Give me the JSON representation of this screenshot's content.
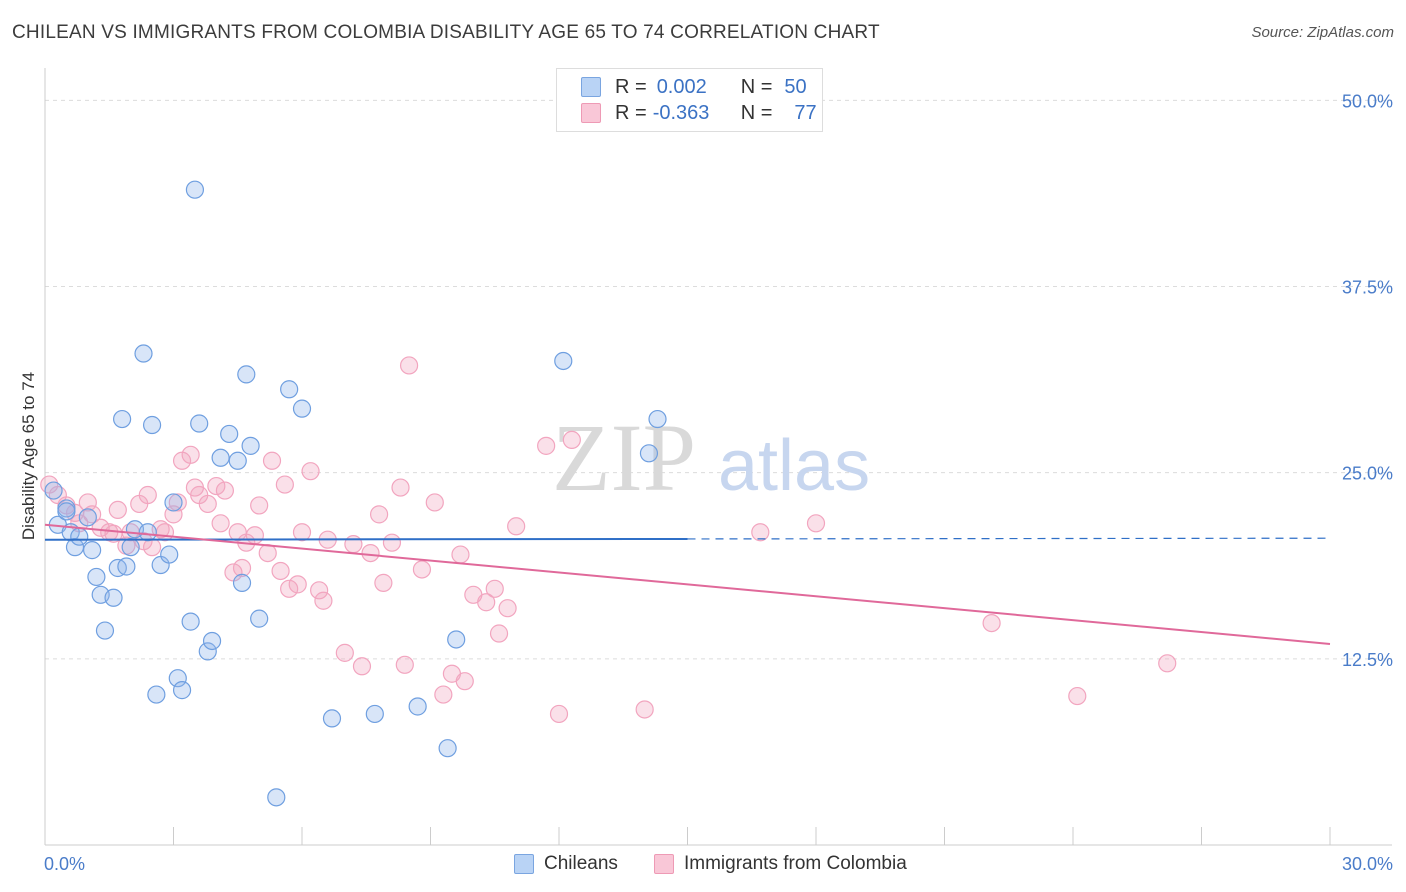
{
  "title": "CHILEAN VS IMMIGRANTS FROM COLOMBIA DISABILITY AGE 65 TO 74 CORRELATION CHART",
  "source": "Source: ZipAtlas.com",
  "watermark": {
    "zip": "ZIP",
    "atlas": "atlas"
  },
  "legend": {
    "r_label": "R =",
    "n_label": "N =",
    "series": [
      {
        "r": "0.002",
        "n": "50",
        "fill": "#b9d3f5",
        "stroke": "#7aa5e0"
      },
      {
        "r": "-0.363",
        "n": "77",
        "fill": "#f9c7d7",
        "stroke": "#ee9ab5"
      }
    ]
  },
  "colors": {
    "blue_point": "#8fb5ea",
    "blue_line": "#2f6fc7",
    "pink_point": "#f2a5bf",
    "pink_line": "#e0699a",
    "tick_text": "#4a7cc9"
  },
  "chart_data": {
    "type": "scatter",
    "title": "CHILEAN VS IMMIGRANTS FROM COLOMBIA DISABILITY AGE 65 TO 74 CORRELATION CHART",
    "xlabel": "",
    "ylabel": "Disability Age 65 to 74",
    "xlim": [
      0,
      30
    ],
    "ylim": [
      0,
      51.5
    ],
    "x_tick_labels": [
      "0.0%",
      "30.0%"
    ],
    "y_ticks": [
      12.5,
      25.0,
      37.5,
      50.0
    ],
    "y_tick_labels": [
      "12.5%",
      "25.0%",
      "37.5%",
      "50.0%"
    ],
    "grid": true,
    "legend_position": "top-center",
    "series": [
      {
        "name": "Chileans",
        "points": [
          [
            0.2,
            23.8
          ],
          [
            0.3,
            21.5
          ],
          [
            0.5,
            22.6
          ],
          [
            0.6,
            21.0
          ],
          [
            0.7,
            20.0
          ],
          [
            0.8,
            20.7
          ],
          [
            1.0,
            22.0
          ],
          [
            1.1,
            19.8
          ],
          [
            1.2,
            18.0
          ],
          [
            1.3,
            16.8
          ],
          [
            1.4,
            14.4
          ],
          [
            1.6,
            16.6
          ],
          [
            1.7,
            18.6
          ],
          [
            1.8,
            28.6
          ],
          [
            1.9,
            18.7
          ],
          [
            2.0,
            20.0
          ],
          [
            2.1,
            21.2
          ],
          [
            2.3,
            33.0
          ],
          [
            2.4,
            21.0
          ],
          [
            2.5,
            28.2
          ],
          [
            2.6,
            10.1
          ],
          [
            2.7,
            18.8
          ],
          [
            2.9,
            19.5
          ],
          [
            3.0,
            23.0
          ],
          [
            3.1,
            11.2
          ],
          [
            3.2,
            10.4
          ],
          [
            3.4,
            15.0
          ],
          [
            3.5,
            44.0
          ],
          [
            3.6,
            28.3
          ],
          [
            3.8,
            13.0
          ],
          [
            3.9,
            13.7
          ],
          [
            4.1,
            26.0
          ],
          [
            4.3,
            27.6
          ],
          [
            4.5,
            25.8
          ],
          [
            4.6,
            17.6
          ],
          [
            4.7,
            31.6
          ],
          [
            4.8,
            26.8
          ],
          [
            5.0,
            15.2
          ],
          [
            5.4,
            3.2
          ],
          [
            5.7,
            30.6
          ],
          [
            6.0,
            29.3
          ],
          [
            6.7,
            8.5
          ],
          [
            7.7,
            8.8
          ],
          [
            8.7,
            9.3
          ],
          [
            9.4,
            6.5
          ],
          [
            9.6,
            13.8
          ],
          [
            12.1,
            32.5
          ],
          [
            14.1,
            26.3
          ],
          [
            14.3,
            28.6
          ],
          [
            0.5,
            22.4
          ]
        ]
      },
      {
        "name": "Immigrants from Colombia",
        "points": [
          [
            0.1,
            24.2
          ],
          [
            0.3,
            23.5
          ],
          [
            0.5,
            22.8
          ],
          [
            0.7,
            22.3
          ],
          [
            0.8,
            21.6
          ],
          [
            1.0,
            23.0
          ],
          [
            1.1,
            22.2
          ],
          [
            1.3,
            21.3
          ],
          [
            1.5,
            21.0
          ],
          [
            1.6,
            20.9
          ],
          [
            1.7,
            22.5
          ],
          [
            1.9,
            20.1
          ],
          [
            2.0,
            21.0
          ],
          [
            2.2,
            22.9
          ],
          [
            2.3,
            20.4
          ],
          [
            2.4,
            23.5
          ],
          [
            2.5,
            20.0
          ],
          [
            2.7,
            21.2
          ],
          [
            2.8,
            21.0
          ],
          [
            3.0,
            22.2
          ],
          [
            3.1,
            23.0
          ],
          [
            3.2,
            25.8
          ],
          [
            3.4,
            26.2
          ],
          [
            3.5,
            24.0
          ],
          [
            3.6,
            23.5
          ],
          [
            3.8,
            22.9
          ],
          [
            4.0,
            24.1
          ],
          [
            4.1,
            21.6
          ],
          [
            4.2,
            23.8
          ],
          [
            4.4,
            18.3
          ],
          [
            4.5,
            21.0
          ],
          [
            4.6,
            18.6
          ],
          [
            4.7,
            20.3
          ],
          [
            4.9,
            20.8
          ],
          [
            5.0,
            22.8
          ],
          [
            5.2,
            19.6
          ],
          [
            5.3,
            25.8
          ],
          [
            5.5,
            18.4
          ],
          [
            5.6,
            24.2
          ],
          [
            5.7,
            17.2
          ],
          [
            5.9,
            17.5
          ],
          [
            6.0,
            21.0
          ],
          [
            6.2,
            25.1
          ],
          [
            6.4,
            17.1
          ],
          [
            6.5,
            16.4
          ],
          [
            6.6,
            20.5
          ],
          [
            7.0,
            12.9
          ],
          [
            7.2,
            20.2
          ],
          [
            7.4,
            12.0
          ],
          [
            7.6,
            19.6
          ],
          [
            7.8,
            22.2
          ],
          [
            7.9,
            17.6
          ],
          [
            8.1,
            20.3
          ],
          [
            8.3,
            24.0
          ],
          [
            8.4,
            12.1
          ],
          [
            8.5,
            32.2
          ],
          [
            8.8,
            18.5
          ],
          [
            9.1,
            23.0
          ],
          [
            9.3,
            10.1
          ],
          [
            9.5,
            11.5
          ],
          [
            9.7,
            19.5
          ],
          [
            9.8,
            11.0
          ],
          [
            10.0,
            16.8
          ],
          [
            10.3,
            16.3
          ],
          [
            10.5,
            17.2
          ],
          [
            10.6,
            14.2
          ],
          [
            10.8,
            15.9
          ],
          [
            11.0,
            21.4
          ],
          [
            11.7,
            26.8
          ],
          [
            12.0,
            8.8
          ],
          [
            12.3,
            27.2
          ],
          [
            14.0,
            9.1
          ],
          [
            16.7,
            21.0
          ],
          [
            18.0,
            21.6
          ],
          [
            22.1,
            14.9
          ],
          [
            24.1,
            10.0
          ],
          [
            26.2,
            12.2
          ]
        ]
      }
    ],
    "trend_lines": [
      {
        "name": "Chileans",
        "x": [
          0,
          15
        ],
        "y": [
          20.5,
          20.55
        ],
        "extended_x": [
          15,
          30
        ],
        "extended_y": [
          20.55,
          20.6
        ],
        "style": "solid-then-dashed"
      },
      {
        "name": "Immigrants from Colombia",
        "x": [
          0,
          30
        ],
        "y": [
          21.5,
          13.5
        ],
        "style": "solid"
      }
    ]
  },
  "bottom_legend": [
    {
      "label": "Chileans",
      "fill": "#b9d3f5",
      "stroke": "#7aa5e0"
    },
    {
      "label": "Immigrants from Colombia",
      "fill": "#f9c7d7",
      "stroke": "#ee9ab5"
    }
  ]
}
